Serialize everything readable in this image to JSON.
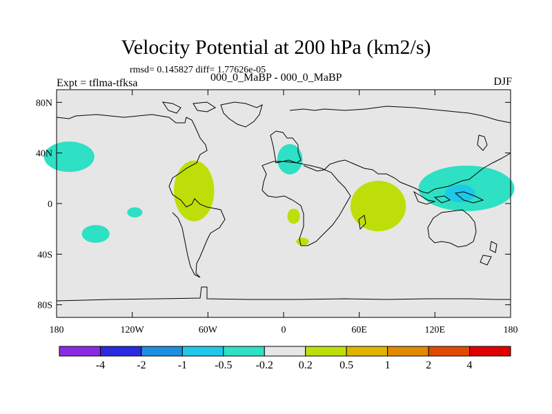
{
  "chart_data": {
    "type": "map",
    "title": "Velocity Potential at 200 hPa (km2/s)",
    "stats": "rmsd= 0.145827 diff= 1.77626e-05",
    "left_label": "Expt = tflma-tfksa",
    "center_label": "000_0_MaBP - 000_0_MaBP",
    "right_label": "DJF",
    "x_ticks": [
      "180",
      "120W",
      "60W",
      "0",
      "60E",
      "120E",
      "180"
    ],
    "x_tick_values": [
      -180,
      -120,
      -60,
      0,
      60,
      120,
      180
    ],
    "y_ticks": [
      "80N",
      "40N",
      "0",
      "40S",
      "80S"
    ],
    "y_tick_values": [
      80,
      40,
      0,
      -40,
      -80
    ],
    "xlim": [
      -180,
      180
    ],
    "ylim": [
      -90,
      90
    ],
    "colorbar": {
      "colors": [
        "#8a2be2",
        "#2a2ae0",
        "#1e8ee0",
        "#1ec8e8",
        "#2ee0c4",
        "#e6e6e6",
        "#bede0a",
        "#e0b400",
        "#e08a00",
        "#e04a00",
        "#e00000"
      ],
      "labels": [
        "-4",
        "-2",
        "-1",
        "-0.5",
        "-0.2",
        "0.2",
        "0.5",
        "1",
        "2",
        "4"
      ]
    },
    "anomalies": [
      {
        "name": "north-pacific-negative",
        "level": "-0.2",
        "color": "#2ee0c4",
        "lon": -170,
        "lat": 37,
        "rlon": 20,
        "rlat": 12
      },
      {
        "name": "south-pacific-negative",
        "level": "-0.2",
        "color": "#2ee0c4",
        "lon": -149,
        "lat": -24,
        "rlon": 11,
        "rlat": 7
      },
      {
        "name": "tropical-pacific-negative",
        "level": "-0.2",
        "color": "#2ee0c4",
        "lon": -118,
        "lat": -7,
        "rlon": 6,
        "rlat": 4
      },
      {
        "name": "south-america-positive",
        "level": "0.2",
        "color": "#bede0a",
        "lon": -71,
        "lat": 10,
        "rlon": 16,
        "rlat": 24
      },
      {
        "name": "mediterranean-negative",
        "level": "-0.2",
        "color": "#2ee0c4",
        "lon": 5,
        "lat": 35,
        "rlon": 10,
        "rlat": 12
      },
      {
        "name": "west-africa-positive",
        "level": "0.2",
        "color": "#bede0a",
        "lon": 8,
        "lat": -10,
        "rlon": 5,
        "rlat": 6
      },
      {
        "name": "south-africa-positive",
        "level": "0.2",
        "color": "#bede0a",
        "lon": 15,
        "lat": -30,
        "rlon": 5,
        "rlat": 3
      },
      {
        "name": "indian-ocean-positive",
        "level": "0.2",
        "color": "#bede0a",
        "lon": 75,
        "lat": -2,
        "rlon": 22,
        "rlat": 20
      },
      {
        "name": "west-pacific-negative",
        "level": "-0.2",
        "color": "#2ee0c4",
        "lon": 145,
        "lat": 12,
        "rlon": 38,
        "rlat": 18
      },
      {
        "name": "west-pacific-core-negative",
        "level": "-0.5",
        "color": "#1ec8e8",
        "lon": 140,
        "lat": 8,
        "rlon": 12,
        "rlat": 7
      }
    ]
  }
}
